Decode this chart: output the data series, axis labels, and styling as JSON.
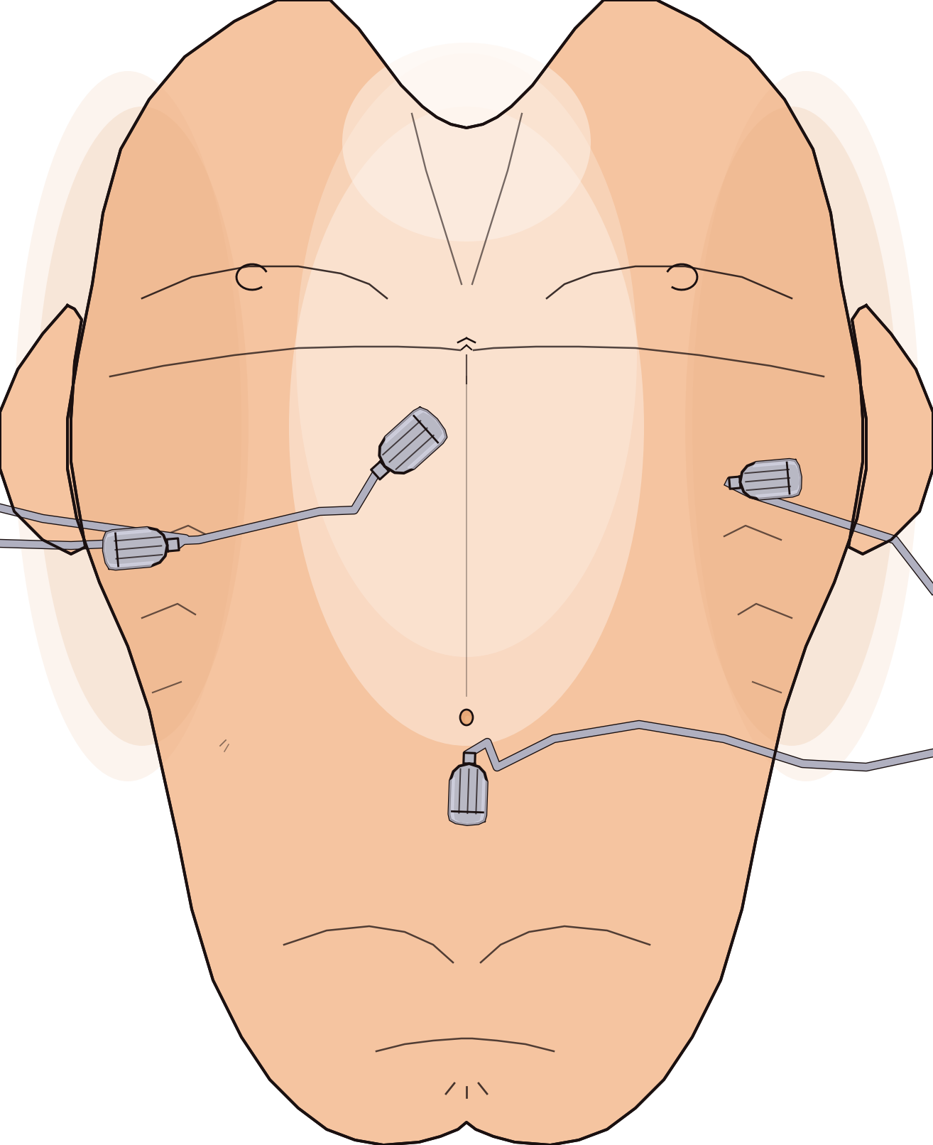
{
  "bg": "#ffffff",
  "skin_base": "#f5c4a0",
  "skin_light": "#fde8d4",
  "skin_highlight": "#fef4ec",
  "skin_shadow": "#e8a878",
  "skin_mid": "#f0b888",
  "outline": "#1a1010",
  "probe_gray": "#b8b8c4",
  "probe_light": "#d8d8e8",
  "probe_dark": "#808090",
  "probe_darkest": "#404050",
  "cable_fill": "#b0b0c0",
  "cable_dark": "#888898",
  "lw": 2.8,
  "fig_width": 13.14,
  "fig_height": 16.12
}
